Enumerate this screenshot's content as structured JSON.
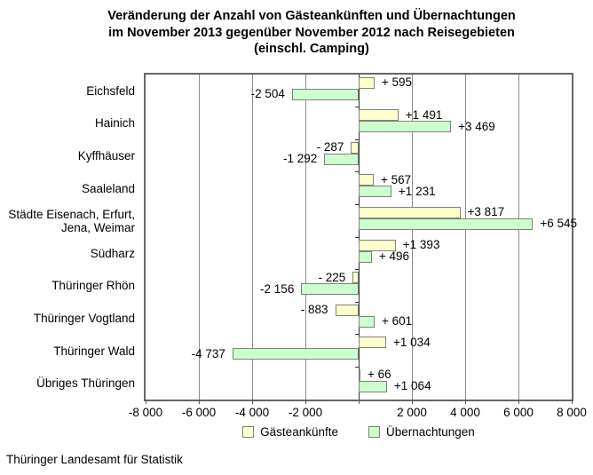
{
  "title": {
    "line1": "Veränderung der Anzahl von Gästeankünften und Übernachtungen",
    "line2": "im November 2013 gegenüber November 2012 nach Reisegebieten",
    "line3": "(einschl. Camping)"
  },
  "footer": {
    "source": "Thüringer Landesamt für Statistik"
  },
  "legend": {
    "items": [
      {
        "label": "Gästeankünfte",
        "color": "#FFFFCC"
      },
      {
        "label": "Übernachtungen",
        "color": "#CCFFCC"
      }
    ]
  },
  "axis": {
    "xlim": [
      -8000,
      8000
    ],
    "tick_step": 2000,
    "ticks": [
      {
        "value": -8000,
        "label": "-8 000"
      },
      {
        "value": -6000,
        "label": "-6 000"
      },
      {
        "value": -4000,
        "label": "-4 000"
      },
      {
        "value": -2000,
        "label": "-2 000"
      },
      {
        "value": 2000,
        "label": "2 000"
      },
      {
        "value": 4000,
        "label": "4 000"
      },
      {
        "value": 6000,
        "label": "6 000"
      },
      {
        "value": 8000,
        "label": "8 000"
      }
    ]
  },
  "chart_data": {
    "type": "bar",
    "orientation": "horizontal",
    "title": "Veränderung der Anzahl von Gästeankünften und Übernachtungen im November 2013 gegenüber November 2012 nach Reisegebieten (einschl. Camping)",
    "categories": [
      "Eichsfeld",
      "Hainich",
      "Kyffhäuser",
      "Saaleland",
      "Städte Eisenach, Erfurt,\nJena, Weimar",
      "Südharz",
      "Thüringer Rhön",
      "Thüringer Vogtland",
      "Thüringer Wald",
      "Übriges Thüringen"
    ],
    "xlim": [
      -8000,
      8000
    ],
    "grid": true,
    "legend_position": "bottom",
    "series": [
      {
        "name": "Gästeankünfte",
        "color": "#FFFFCC",
        "values": [
          595,
          1491,
          -287,
          567,
          3817,
          1393,
          -225,
          -883,
          1034,
          66
        ],
        "labels": [
          "+ 595",
          "+1 491",
          "- 287",
          "+ 567",
          "+3 817",
          "+1 393",
          "- 225",
          "- 883",
          "+1 034",
          "+ 66"
        ]
      },
      {
        "name": "Übernachtungen",
        "color": "#CCFFCC",
        "values": [
          -2504,
          3469,
          -1292,
          1231,
          6545,
          496,
          -2156,
          601,
          -4737,
          1064
        ],
        "labels": [
          "-2 504",
          "+3 469",
          "-1 292",
          "+1 231",
          "+6 545",
          "+ 496",
          "-2 156",
          "+ 601",
          "-4 737",
          "+1 064"
        ]
      }
    ]
  },
  "colors": {
    "bar_border": "#808080",
    "plot_border": "#666666",
    "gridline": "#8c8c8c",
    "zero_axis": "#333333",
    "text": "#000000"
  }
}
